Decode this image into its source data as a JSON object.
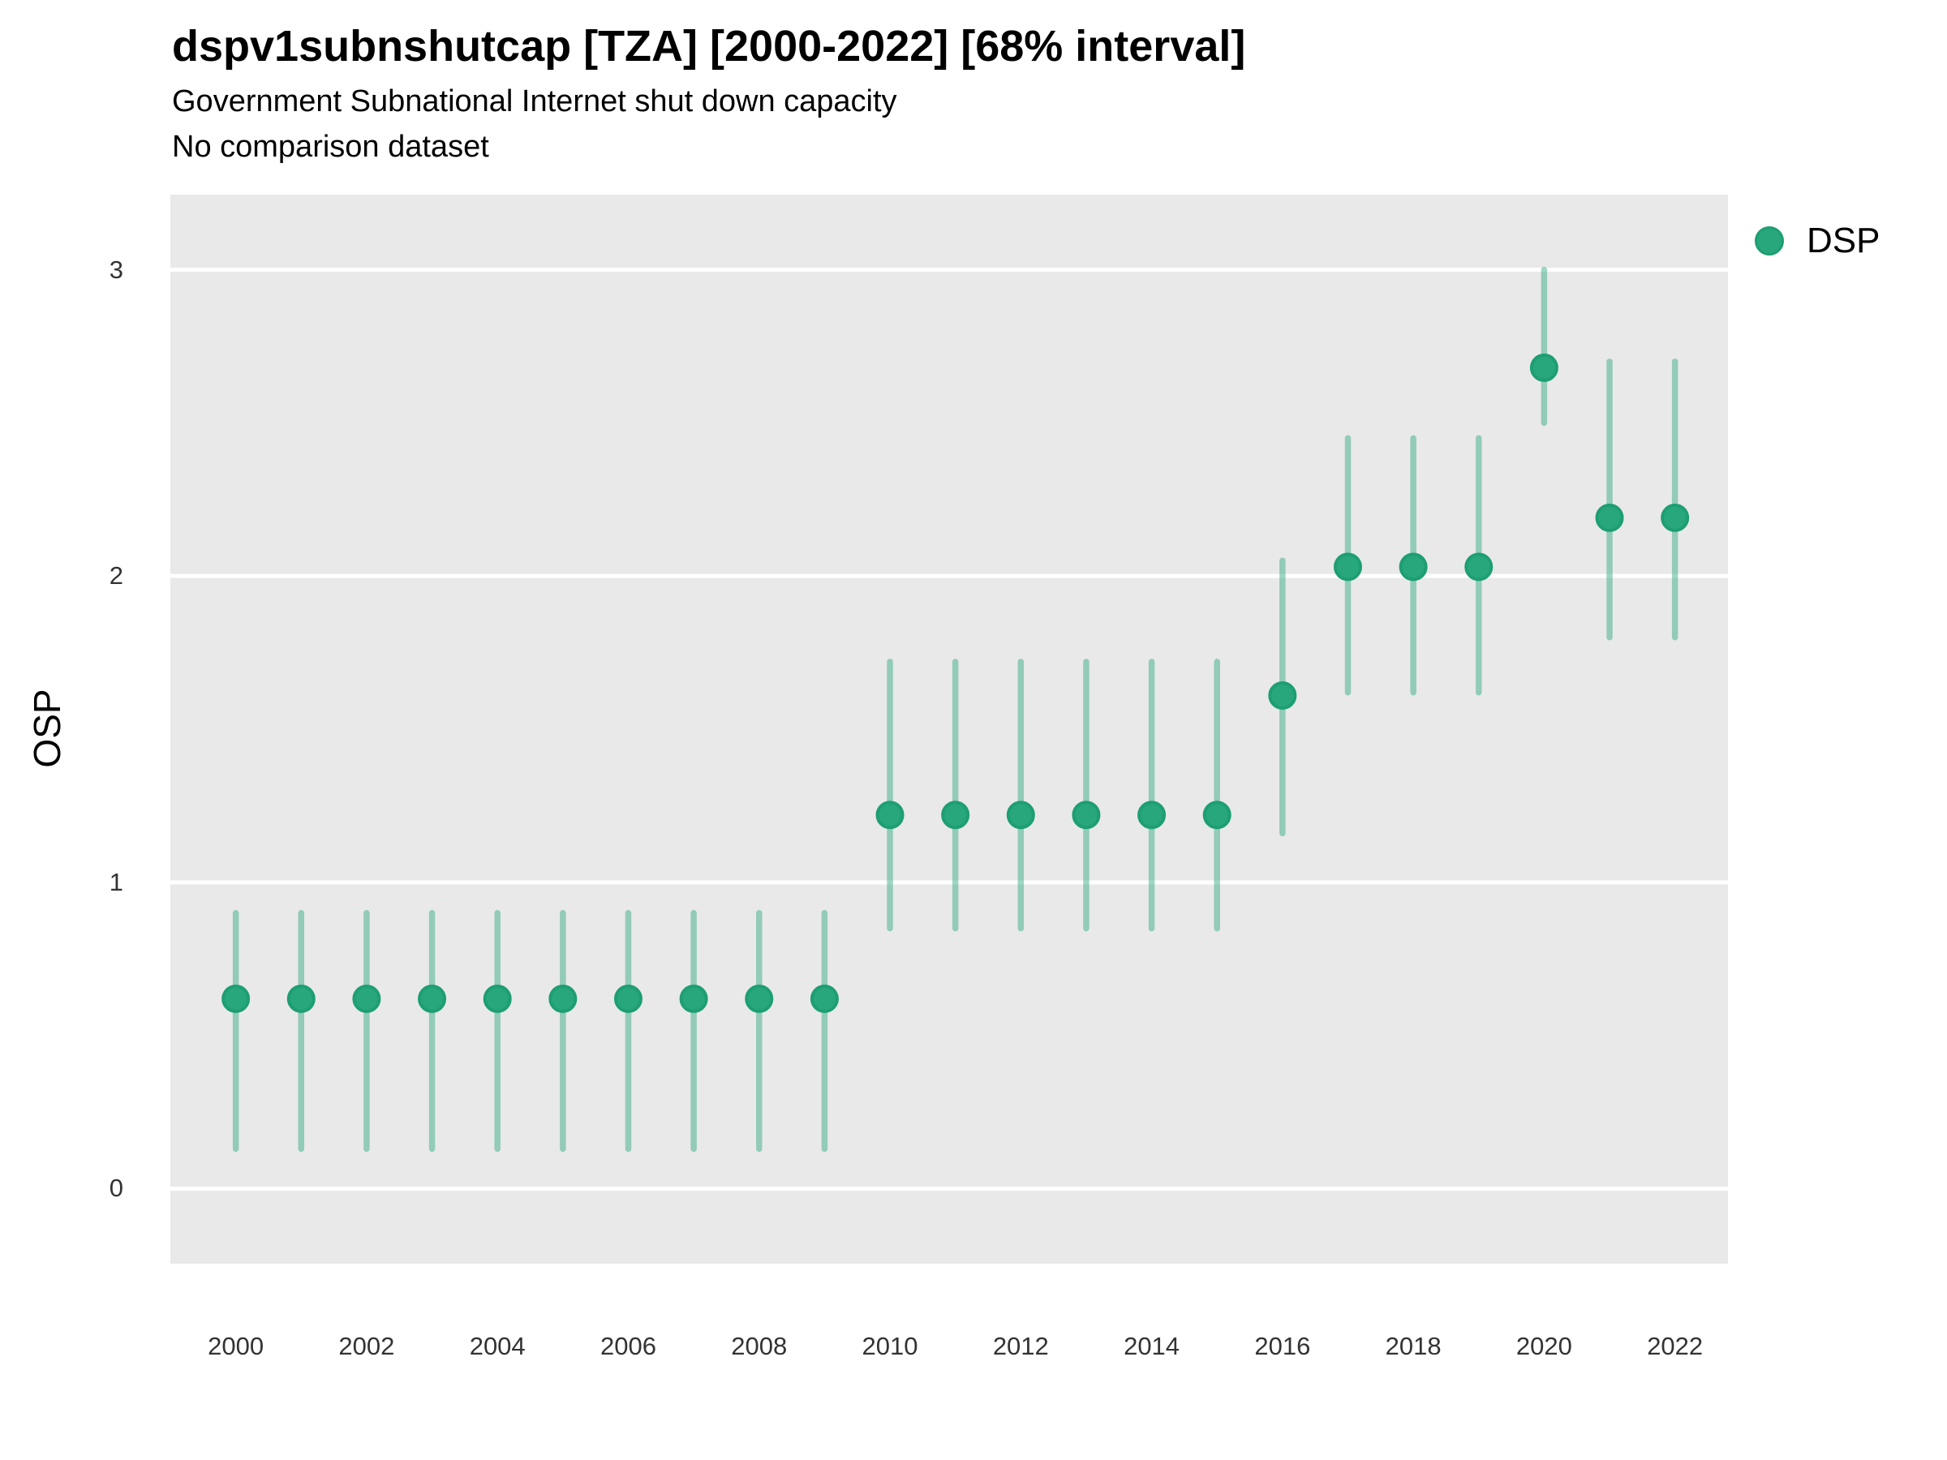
{
  "header": {
    "title": "dspv1subnshutcap [TZA] [2000-2022] [68% interval]",
    "subtitle": "Government Subnational Internet shut down capacity",
    "comparison_note": "No comparison dataset"
  },
  "legend": {
    "label": "DSP"
  },
  "y_axis": {
    "title": "OSP"
  },
  "colors": {
    "panel_bg": "#e9e9e9",
    "gridline": "#ffffff",
    "point_fill": "#28a77d",
    "point_stroke": "#1e9e73",
    "interval": "#28a77d",
    "interval_opacity": "0.45",
    "text": "#333333"
  },
  "chart_data": {
    "type": "pointrange",
    "title": "dspv1subnshutcap [TZA] [2000-2022] [68% interval]",
    "subtitle": "Government Subnational Internet shut down capacity",
    "note": "No comparison dataset",
    "xlabel": "",
    "ylabel": "OSP",
    "interval_label": "68% interval",
    "legend_entries": [
      "DSP"
    ],
    "legend_position": "right-top",
    "grid": "horizontal-major-only",
    "x": [
      2000,
      2001,
      2002,
      2003,
      2004,
      2005,
      2006,
      2007,
      2008,
      2009,
      2010,
      2011,
      2012,
      2013,
      2014,
      2015,
      2016,
      2017,
      2018,
      2019,
      2020,
      2021,
      2022
    ],
    "series": [
      {
        "name": "DSP",
        "y": [
          0.62,
          0.62,
          0.62,
          0.62,
          0.62,
          0.62,
          0.62,
          0.62,
          0.62,
          0.62,
          1.22,
          1.22,
          1.22,
          1.22,
          1.22,
          1.22,
          1.61,
          2.03,
          2.03,
          2.03,
          2.68,
          2.19,
          2.19
        ],
        "low": [
          0.13,
          0.13,
          0.13,
          0.13,
          0.13,
          0.13,
          0.13,
          0.13,
          0.13,
          0.13,
          0.85,
          0.85,
          0.85,
          0.85,
          0.85,
          0.85,
          1.16,
          1.62,
          1.62,
          1.62,
          2.5,
          1.8,
          1.8
        ],
        "high": [
          0.9,
          0.9,
          0.9,
          0.9,
          0.9,
          0.9,
          0.9,
          0.9,
          0.9,
          0.9,
          1.72,
          1.72,
          1.72,
          1.72,
          1.72,
          1.72,
          2.05,
          2.45,
          2.45,
          2.45,
          3.0,
          2.7,
          2.7
        ]
      }
    ],
    "x_ticks": [
      2000,
      2002,
      2004,
      2006,
      2008,
      2010,
      2012,
      2014,
      2016,
      2018,
      2020,
      2022
    ],
    "y_ticks": [
      0,
      1,
      2,
      3
    ],
    "x_domain": [
      1999.0,
      2022.81
    ],
    "y_domain": [
      -0.245,
      3.245
    ]
  }
}
